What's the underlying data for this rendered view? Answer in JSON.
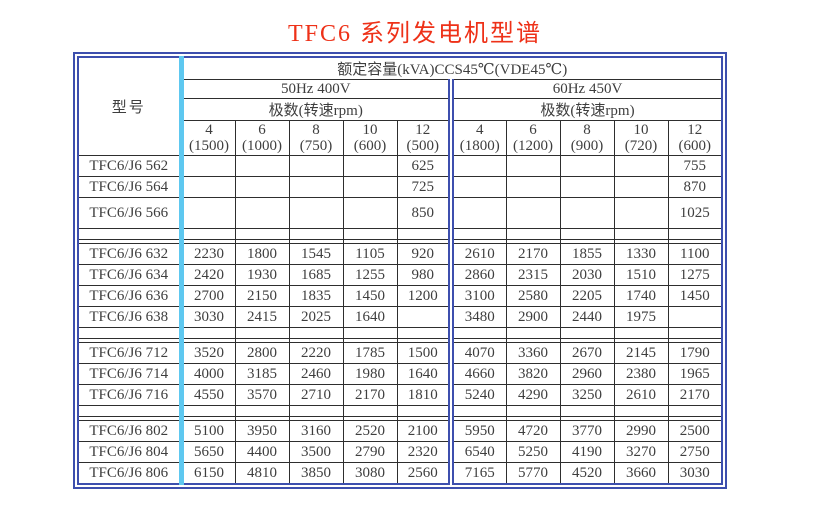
{
  "title": "TFC6 系列发电机型谱",
  "colors": {
    "title_red": "#ee3118",
    "frame_blue": "#3d4fae",
    "divider_cyan": "#5ec8f0",
    "cell_border": "#2e2e2e",
    "text": "#3e3e3e"
  },
  "table": {
    "model_header": "型号",
    "capacity_header": "额定容量(kVA)CCS45℃(VDE45℃)",
    "sections": [
      {
        "freq": "50Hz 400V",
        "poles_label": "极数(转速rpm)",
        "poles": [
          {
            "p": "4",
            "rpm": "(1500)"
          },
          {
            "p": "6",
            "rpm": "(1000)"
          },
          {
            "p": "8",
            "rpm": "(750)"
          },
          {
            "p": "10",
            "rpm": "(600)"
          },
          {
            "p": "12",
            "rpm": "(500)"
          }
        ]
      },
      {
        "freq": "60Hz 450V",
        "poles_label": "极数(转速rpm)",
        "poles": [
          {
            "p": "4",
            "rpm": "(1800)"
          },
          {
            "p": "6",
            "rpm": "(1200)"
          },
          {
            "p": "8",
            "rpm": "(900)"
          },
          {
            "p": "10",
            "rpm": "(720)"
          },
          {
            "p": "12",
            "rpm": "(600)"
          }
        ]
      }
    ],
    "rows": [
      {
        "type": "data",
        "model": "TFC6/J6 562",
        "values": [
          "",
          "",
          "",
          "",
          "625",
          "",
          "",
          "",
          "",
          "755"
        ]
      },
      {
        "type": "data",
        "model": "TFC6/J6 564",
        "values": [
          "",
          "",
          "",
          "",
          "725",
          "",
          "",
          "",
          "",
          "870"
        ]
      },
      {
        "type": "data",
        "tall": true,
        "model": "TFC6/J6 566",
        "values": [
          "",
          "",
          "",
          "",
          "850",
          "",
          "",
          "",
          "",
          "1025"
        ]
      },
      {
        "type": "blank"
      },
      {
        "type": "data",
        "model": "TFC6/J6 632",
        "values": [
          "2230",
          "1800",
          "1545",
          "1105",
          "920",
          "2610",
          "2170",
          "1855",
          "1330",
          "1100"
        ]
      },
      {
        "type": "data",
        "model": "TFC6/J6 634",
        "values": [
          "2420",
          "1930",
          "1685",
          "1255",
          "980",
          "2860",
          "2315",
          "2030",
          "1510",
          "1275"
        ]
      },
      {
        "type": "data",
        "model": "TFC6/J6 636",
        "values": [
          "2700",
          "2150",
          "1835",
          "1450",
          "1200",
          "3100",
          "2580",
          "2205",
          "1740",
          "1450"
        ]
      },
      {
        "type": "data",
        "model": "TFC6/J6 638",
        "values": [
          "3030",
          "2415",
          "2025",
          "1640",
          "",
          "3480",
          "2900",
          "2440",
          "1975",
          ""
        ]
      },
      {
        "type": "blank"
      },
      {
        "type": "data",
        "model": "TFC6/J6 712",
        "values": [
          "3520",
          "2800",
          "2220",
          "1785",
          "1500",
          "4070",
          "3360",
          "2670",
          "2145",
          "1790"
        ]
      },
      {
        "type": "data",
        "model": "TFC6/J6 714",
        "values": [
          "4000",
          "3185",
          "2460",
          "1980",
          "1640",
          "4660",
          "3820",
          "2960",
          "2380",
          "1965"
        ]
      },
      {
        "type": "data",
        "model": "TFC6/J6 716",
        "values": [
          "4550",
          "3570",
          "2710",
          "2170",
          "1810",
          "5240",
          "4290",
          "3250",
          "2610",
          "2170"
        ]
      },
      {
        "type": "blank"
      },
      {
        "type": "data",
        "model": "TFC6/J6 802",
        "values": [
          "5100",
          "3950",
          "3160",
          "2520",
          "2100",
          "5950",
          "4720",
          "3770",
          "2990",
          "2500"
        ]
      },
      {
        "type": "data",
        "model": "TFC6/J6 804",
        "values": [
          "5650",
          "4400",
          "3500",
          "2790",
          "2320",
          "6540",
          "5250",
          "4190",
          "3270",
          "2750"
        ]
      },
      {
        "type": "data",
        "model": "TFC6/J6 806",
        "values": [
          "6150",
          "4810",
          "3850",
          "3080",
          "2560",
          "7165",
          "5770",
          "4520",
          "3660",
          "3030"
        ]
      }
    ]
  }
}
